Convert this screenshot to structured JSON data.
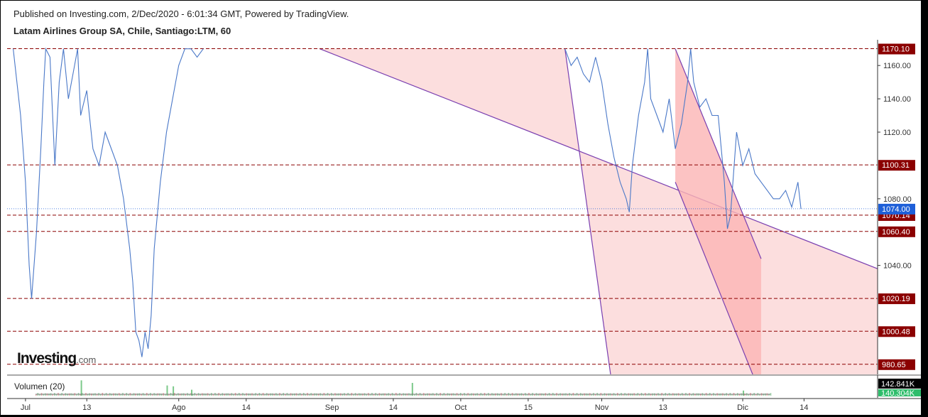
{
  "header": {
    "published": "Published on Investing.com, 2/Dec/2020 - 6:01:34 GMT, Powered by TradingView.",
    "symbol": "Latam Airlines Group SA, Chile, Santiago:LTM, 60"
  },
  "logo": {
    "brand": "Investing",
    "suffix": ".com"
  },
  "volume": {
    "label": "Volumen (20)",
    "last": "142.841K",
    "ma": "140.304K"
  },
  "colors": {
    "price_line": "#4a78c8",
    "level_line": "#8b0000",
    "channel_line": "#7a3fb0",
    "channel_fill": "#fcd8d8",
    "inner_fill": "#fbb4b4",
    "current_price_badge": "#1e5fd8"
  },
  "chart_data": {
    "type": "line",
    "series": [
      {
        "values": [
          [
            0,
            1170
          ],
          [
            1.2,
            1130
          ],
          [
            2,
            1090
          ],
          [
            2.6,
            1040
          ],
          [
            3,
            1020
          ],
          [
            3.8,
            1060
          ],
          [
            4.5,
            1110
          ],
          [
            5,
            1150
          ],
          [
            5.3,
            1170
          ],
          [
            6,
            1165
          ],
          [
            6.8,
            1100
          ],
          [
            7.5,
            1150
          ],
          [
            8.2,
            1170
          ],
          [
            9,
            1140
          ],
          [
            10,
            1160
          ],
          [
            10.5,
            1170
          ],
          [
            11,
            1130
          ],
          [
            12,
            1145
          ],
          [
            13,
            1110
          ],
          [
            14,
            1100
          ],
          [
            15,
            1120
          ],
          [
            16,
            1110
          ],
          [
            17,
            1100
          ],
          [
            18,
            1080
          ],
          [
            19,
            1050
          ],
          [
            19.5,
            1030
          ],
          [
            20,
            1000
          ],
          [
            20.5,
            995
          ],
          [
            21,
            985
          ],
          [
            21.5,
            1000
          ],
          [
            22,
            990
          ],
          [
            22.5,
            1010
          ],
          [
            23,
            1050
          ],
          [
            24,
            1090
          ],
          [
            25,
            1120
          ],
          [
            26,
            1140
          ],
          [
            27,
            1160
          ],
          [
            28,
            1170
          ],
          [
            29,
            1170
          ],
          [
            30,
            1165
          ],
          [
            31,
            1170
          ],
          [
            90,
            1170
          ],
          [
            91,
            1160
          ],
          [
            92,
            1165
          ],
          [
            93,
            1155
          ],
          [
            94,
            1150
          ],
          [
            95,
            1165
          ],
          [
            96,
            1150
          ],
          [
            97,
            1125
          ],
          [
            98,
            1105
          ],
          [
            99,
            1090
          ],
          [
            100,
            1080
          ],
          [
            100.5,
            1072
          ],
          [
            101,
            1100
          ],
          [
            102,
            1130
          ],
          [
            103,
            1150
          ],
          [
            103.5,
            1170
          ],
          [
            104,
            1140
          ],
          [
            105,
            1130
          ],
          [
            106,
            1120
          ],
          [
            107,
            1140
          ],
          [
            108,
            1110
          ],
          [
            109,
            1125
          ],
          [
            110,
            1150
          ],
          [
            110.5,
            1170
          ],
          [
            111,
            1150
          ],
          [
            112,
            1135
          ],
          [
            113,
            1140
          ],
          [
            114,
            1130
          ],
          [
            115,
            1130
          ],
          [
            116,
            1090
          ],
          [
            116.5,
            1062
          ],
          [
            117,
            1070
          ],
          [
            118,
            1120
          ],
          [
            119,
            1100
          ],
          [
            120,
            1110
          ],
          [
            121,
            1095
          ],
          [
            122,
            1090
          ],
          [
            123,
            1085
          ],
          [
            124,
            1080
          ],
          [
            125,
            1080
          ],
          [
            126,
            1085
          ],
          [
            127,
            1075
          ],
          [
            128,
            1090
          ],
          [
            128.5,
            1074
          ]
        ]
      }
    ],
    "x_ticks": [
      {
        "label": "Jul",
        "x": 2
      },
      {
        "label": "13",
        "x": 12
      },
      {
        "label": "Ago",
        "x": 27
      },
      {
        "label": "14",
        "x": 38
      },
      {
        "label": "Sep",
        "x": 52
      },
      {
        "label": "14",
        "x": 62
      },
      {
        "label": "Oct",
        "x": 73
      },
      {
        "label": "15",
        "x": 84
      },
      {
        "label": "Nov",
        "x": 96
      },
      {
        "label": "13",
        "x": 106
      },
      {
        "label": "Dic",
        "x": 119
      },
      {
        "label": "14",
        "x": 129
      }
    ],
    "x_range": [
      -1,
      141
    ],
    "y_ticks": [
      1160,
      1140,
      1120,
      1080,
      1040
    ],
    "y_tick_labels": [
      "1160.00",
      "1140.00",
      "1120.00",
      "1080.00",
      "1040.00"
    ],
    "ylim": [
      974.6,
      1173.3
    ],
    "levels": [
      {
        "value": 1170.1,
        "label": "1170.10"
      },
      {
        "value": 1100.31,
        "label": "1100.31"
      },
      {
        "value": 1070.14,
        "label": "1070.14"
      },
      {
        "value": 1060.4,
        "label": "1060.40"
      },
      {
        "value": 1020.19,
        "label": "1020.19"
      },
      {
        "value": 1000.48,
        "label": "1000.48"
      },
      {
        "value": 980.65,
        "label": "980.65"
      }
    ],
    "current_price": {
      "value": 1074.0,
      "label": "1074.00"
    },
    "channels": [
      {
        "upper": [
          [
            50,
            1170
          ],
          [
            141,
            1038
          ]
        ],
        "lower": [
          [
            90,
            1170
          ],
          [
            98,
            960
          ]
        ],
        "fill": "outer"
      },
      {
        "upper": [
          [
            108,
            1170
          ],
          [
            122,
            1044
          ]
        ],
        "lower": [
          [
            108,
            1090
          ],
          [
            122,
            962
          ]
        ],
        "fill": "inner",
        "x_end": 122
      }
    ],
    "volume_spikes": [
      [
        11,
        0.9
      ],
      [
        25,
        0.6
      ],
      [
        26,
        0.55
      ],
      [
        29,
        0.35
      ],
      [
        65,
        0.75
      ],
      [
        119,
        0.3
      ]
    ]
  }
}
